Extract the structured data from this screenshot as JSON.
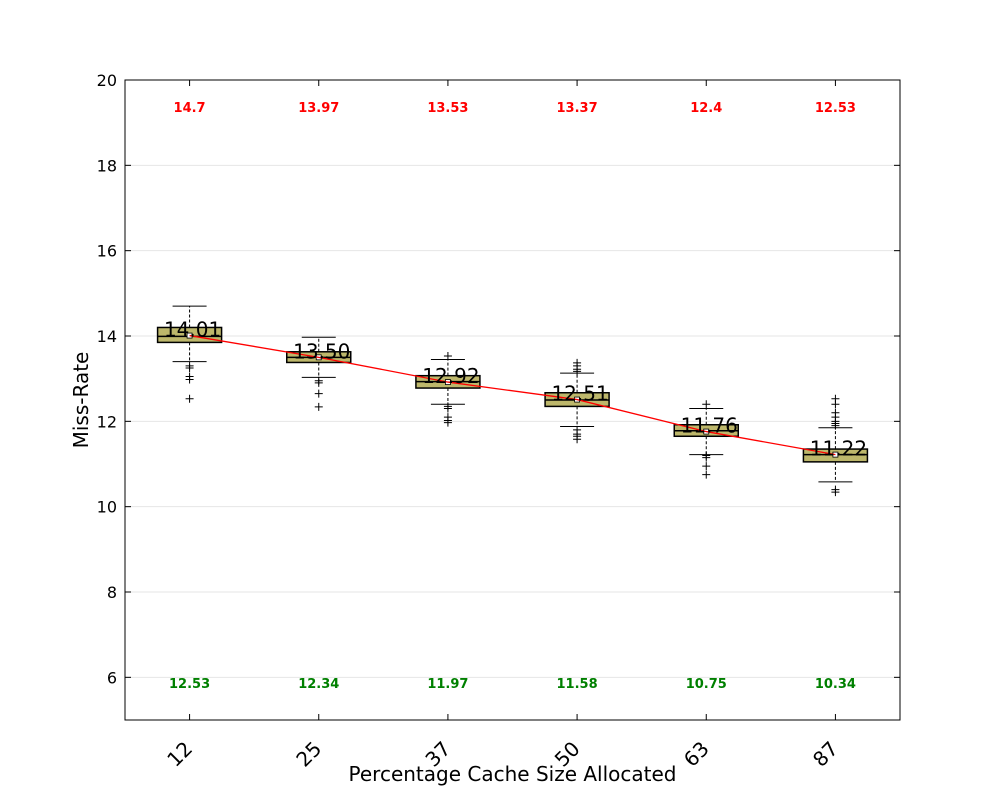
{
  "chart_data": {
    "type": "box",
    "xlabel": "Percentage Cache Size Allocated",
    "ylabel": "Miss-Rate",
    "ylim": [
      5,
      20
    ],
    "yticks": [
      6,
      8,
      10,
      12,
      14,
      16,
      18,
      20
    ],
    "grid": "horizontal",
    "categories": [
      "12",
      "25",
      "37",
      "50",
      "63",
      "87"
    ],
    "boxes": [
      {
        "category": "12",
        "q1": 13.85,
        "median": 13.99,
        "q3": 14.2,
        "whisker_low": 13.4,
        "whisker_high": 14.7,
        "mean": 14.01,
        "mean_label": "14.01",
        "max_label": "14.7",
        "min_label": "12.53",
        "fliers": [
          13.3,
          13.25,
          13.05,
          12.98,
          12.53
        ]
      },
      {
        "category": "25",
        "q1": 13.38,
        "median": 13.5,
        "q3": 13.63,
        "whisker_low": 13.03,
        "whisker_high": 13.97,
        "mean": 13.5,
        "mean_label": "13.50",
        "max_label": "13.97",
        "min_label": "12.34",
        "fliers": [
          12.95,
          12.9,
          12.65,
          12.34
        ]
      },
      {
        "category": "37",
        "q1": 12.78,
        "median": 12.93,
        "q3": 13.07,
        "whisker_low": 12.4,
        "whisker_high": 13.45,
        "mean": 12.92,
        "mean_label": "12.92",
        "max_label": "13.53",
        "min_label": "11.97",
        "fliers": [
          13.53,
          12.35,
          12.3,
          12.1,
          12.02,
          11.97
        ]
      },
      {
        "category": "50",
        "q1": 12.35,
        "median": 12.5,
        "q3": 12.67,
        "whisker_low": 11.88,
        "whisker_high": 13.13,
        "mean": 12.51,
        "mean_label": "12.51",
        "max_label": "13.37",
        "min_label": "11.58",
        "fliers": [
          13.37,
          13.3,
          13.22,
          13.17,
          11.8,
          11.7,
          11.65,
          11.58
        ]
      },
      {
        "category": "63",
        "q1": 11.65,
        "median": 11.78,
        "q3": 11.92,
        "whisker_low": 11.22,
        "whisker_high": 12.3,
        "mean": 11.76,
        "mean_label": "11.76",
        "max_label": "12.4",
        "min_label": "10.75",
        "fliers": [
          12.4,
          11.2,
          11.15,
          10.95,
          10.75
        ]
      },
      {
        "category": "87",
        "q1": 11.05,
        "median": 11.22,
        "q3": 11.35,
        "whisker_low": 10.58,
        "whisker_high": 11.85,
        "mean": 11.22,
        "mean_label": "11.22",
        "max_label": "12.53",
        "min_label": "10.34",
        "fliers": [
          12.53,
          12.4,
          12.2,
          12.1,
          12.0,
          11.95,
          11.9,
          10.4,
          10.34
        ]
      }
    ],
    "colors": {
      "box_fill": "#bdb76b",
      "mean_line": "#ff0000",
      "max_label": "#ff0000",
      "min_label": "#008000",
      "grid": "#e6e6e6"
    }
  }
}
